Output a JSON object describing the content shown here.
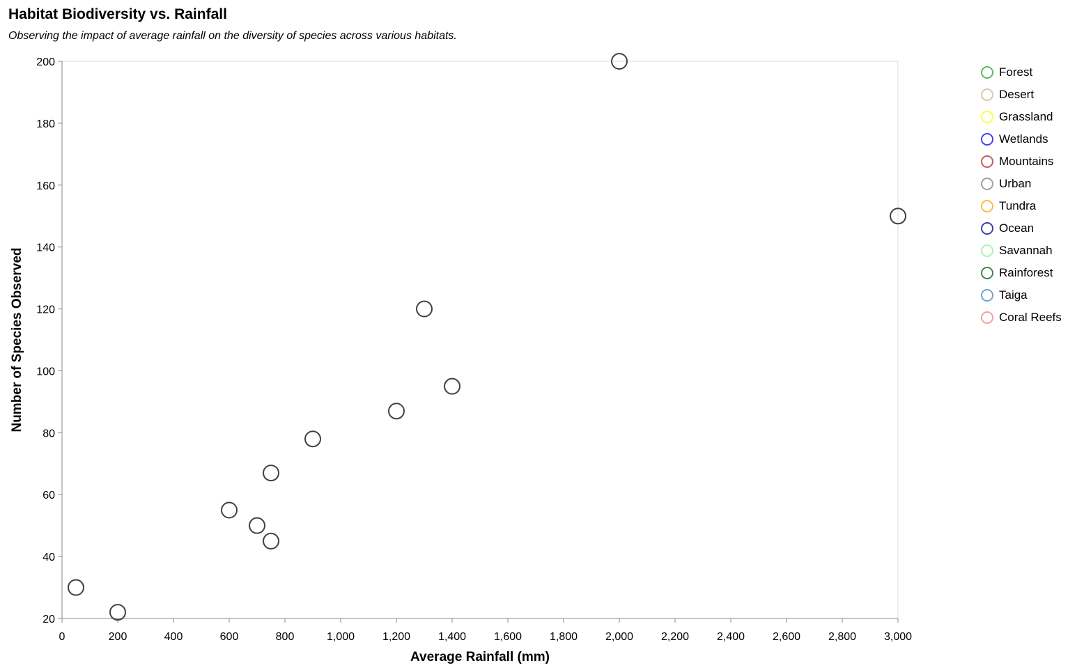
{
  "chart_data": {
    "type": "scatter",
    "title": "Habitat Biodiversity vs. Rainfall",
    "subtitle": "Observing the impact of average rainfall on the diversity of species across various habitats.",
    "xlabel": "Average Rainfall (mm)",
    "ylabel": "Number of Species Observed",
    "xlim": [
      0,
      3000
    ],
    "ylim": [
      20,
      200
    ],
    "xticks": [
      0,
      200,
      400,
      600,
      800,
      1000,
      1200,
      1400,
      1600,
      1800,
      2000,
      2200,
      2400,
      2600,
      2800,
      3000
    ],
    "xtick_labels": [
      "0",
      "200",
      "400",
      "600",
      "800",
      "1,000",
      "1,200",
      "1,400",
      "1,600",
      "1,800",
      "2,000",
      "2,200",
      "2,400",
      "2,600",
      "2,800",
      "3,000"
    ],
    "yticks": [
      20,
      40,
      60,
      80,
      100,
      120,
      140,
      160,
      180,
      200
    ],
    "ytick_labels": [
      "20",
      "40",
      "60",
      "80",
      "100",
      "120",
      "140",
      "160",
      "180",
      "200"
    ],
    "grid": false,
    "legend_position": "right",
    "point_color": "#404040",
    "legend": [
      {
        "label": "Forest",
        "color": "#2ca02c"
      },
      {
        "label": "Desert",
        "color": "#d2b48c"
      },
      {
        "label": "Grassland",
        "color": "#ffff00"
      },
      {
        "label": "Wetlands",
        "color": "#0000ff"
      },
      {
        "label": "Mountains",
        "color": "#a52a2a"
      },
      {
        "label": "Urban",
        "color": "#808080"
      },
      {
        "label": "Tundra",
        "color": "#ffa500"
      },
      {
        "label": "Ocean",
        "color": "#000080"
      },
      {
        "label": "Savannah",
        "color": "#90ee90"
      },
      {
        "label": "Rainforest",
        "color": "#006400"
      },
      {
        "label": "Taiga",
        "color": "#4682b4"
      },
      {
        "label": "Coral Reefs",
        "color": "#f08080"
      }
    ],
    "points": [
      {
        "x": 2000,
        "y": 200
      },
      {
        "x": 3000,
        "y": 150
      },
      {
        "x": 1300,
        "y": 120
      },
      {
        "x": 1400,
        "y": 95
      },
      {
        "x": 1200,
        "y": 87
      },
      {
        "x": 900,
        "y": 78
      },
      {
        "x": 750,
        "y": 67
      },
      {
        "x": 600,
        "y": 55
      },
      {
        "x": 700,
        "y": 50
      },
      {
        "x": 750,
        "y": 45
      },
      {
        "x": 50,
        "y": 30
      },
      {
        "x": 200,
        "y": 22
      }
    ]
  }
}
